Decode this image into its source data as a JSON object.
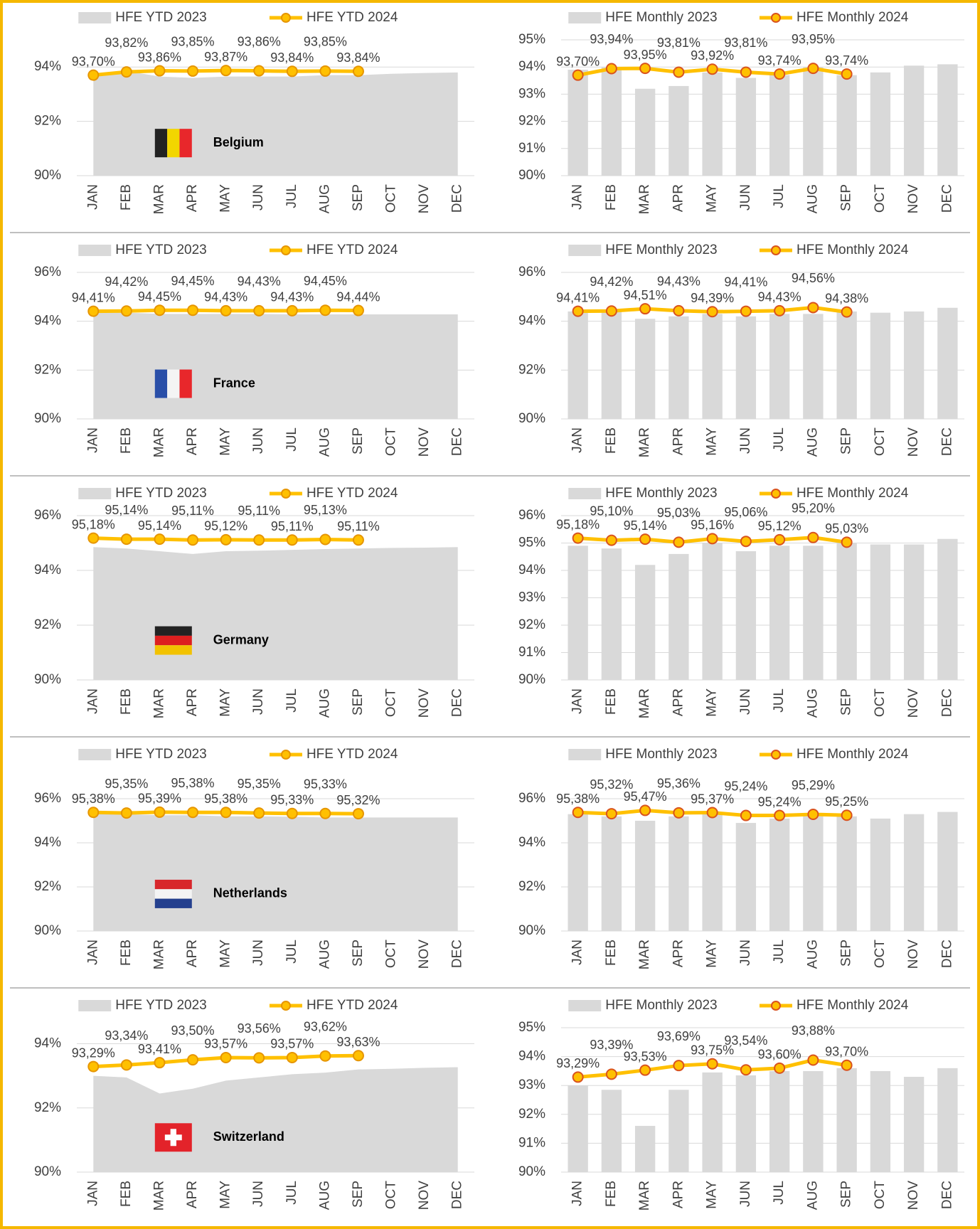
{
  "chart_data": [
    {
      "type": "combo",
      "annotation": "Belgium",
      "categories": [
        "JAN",
        "FEB",
        "MAR",
        "APR",
        "MAY",
        "JUN",
        "JUL",
        "AUG",
        "SEP",
        "OCT",
        "NOV",
        "DEC"
      ],
      "ylim": [
        90,
        95
      ],
      "yticks": [
        {
          "value": 90,
          "label": "90%"
        },
        {
          "value": 92,
          "label": "92%"
        },
        {
          "value": 94,
          "label": "94%"
        }
      ],
      "grid": true,
      "series": [
        {
          "name": "HFE YTD 2023",
          "type": "area",
          "color": "#d9d9d9",
          "values": [
            93.7,
            93.85,
            93.65,
            93.6,
            93.65,
            93.65,
            93.65,
            93.7,
            93.7,
            93.75,
            93.78,
            93.8
          ]
        },
        {
          "name": "HFE YTD 2024",
          "type": "line",
          "color": "#ffc000",
          "marker_edge": "#e69500",
          "values": [
            93.7,
            93.82,
            93.86,
            93.85,
            93.87,
            93.86,
            93.84,
            93.85,
            93.84,
            null,
            null,
            null
          ],
          "value_labels": [
            "93,70%",
            "93,82%",
            "93,86%",
            "93,85%",
            "93,87%",
            "93,86%",
            "93,84%",
            "93,85%",
            "93,84%",
            null,
            null,
            null
          ]
        }
      ]
    },
    {
      "type": "combo",
      "categories": [
        "JAN",
        "FEB",
        "MAR",
        "APR",
        "MAY",
        "JUN",
        "JUL",
        "AUG",
        "SEP",
        "OCT",
        "NOV",
        "DEC"
      ],
      "ylim": [
        90,
        95
      ],
      "yticks": [
        {
          "value": 90,
          "label": "90%"
        },
        {
          "value": 91,
          "label": "91%"
        },
        {
          "value": 92,
          "label": "92%"
        },
        {
          "value": 93,
          "label": "93%"
        },
        {
          "value": 94,
          "label": "94%"
        },
        {
          "value": 95,
          "label": "95%"
        }
      ],
      "grid": true,
      "series": [
        {
          "name": "HFE Monthly 2023",
          "type": "bar",
          "color": "#d9d9d9",
          "values": [
            93.9,
            94.0,
            93.2,
            93.3,
            93.8,
            93.6,
            93.7,
            94.0,
            93.7,
            93.8,
            94.05,
            94.1
          ]
        },
        {
          "name": "HFE Monthly 2024",
          "type": "line",
          "color": "#ffc000",
          "marker_edge": "#d9531e",
          "values": [
            93.7,
            93.94,
            93.95,
            93.81,
            93.92,
            93.81,
            93.74,
            93.95,
            93.74,
            null,
            null,
            null
          ],
          "value_labels": [
            "93,70%",
            "93,94%",
            "93,95%",
            "93,81%",
            "93,92%",
            "93,81%",
            "93,74%",
            "93,95%",
            "93,74%",
            null,
            null,
            null
          ]
        }
      ]
    },
    {
      "type": "combo",
      "annotation": "France",
      "categories": [
        "JAN",
        "FEB",
        "MAR",
        "APR",
        "MAY",
        "JUN",
        "JUL",
        "AUG",
        "SEP",
        "OCT",
        "NOV",
        "DEC"
      ],
      "ylim": [
        90,
        96
      ],
      "yticks": [
        {
          "value": 90,
          "label": "90%"
        },
        {
          "value": 92,
          "label": "92%"
        },
        {
          "value": 94,
          "label": "94%"
        },
        {
          "value": 96,
          "label": "96%"
        }
      ],
      "grid": true,
      "series": [
        {
          "name": "HFE YTD 2023",
          "type": "area",
          "color": "#d9d9d9",
          "values": [
            94.35,
            94.35,
            94.3,
            94.3,
            94.3,
            94.3,
            94.28,
            94.28,
            94.28,
            94.28,
            94.28,
            94.28
          ]
        },
        {
          "name": "HFE YTD 2024",
          "type": "line",
          "color": "#ffc000",
          "marker_edge": "#e69500",
          "values": [
            94.41,
            94.42,
            94.45,
            94.45,
            94.43,
            94.43,
            94.43,
            94.45,
            94.44,
            null,
            null,
            null
          ],
          "value_labels": [
            "94,41%",
            "94,42%",
            "94,45%",
            "94,45%",
            "94,43%",
            "94,43%",
            "94,43%",
            "94,45%",
            "94,44%",
            null,
            null,
            null
          ]
        }
      ]
    },
    {
      "type": "combo",
      "categories": [
        "JAN",
        "FEB",
        "MAR",
        "APR",
        "MAY",
        "JUN",
        "JUL",
        "AUG",
        "SEP",
        "OCT",
        "NOV",
        "DEC"
      ],
      "ylim": [
        90,
        96
      ],
      "yticks": [
        {
          "value": 90,
          "label": "90%"
        },
        {
          "value": 92,
          "label": "92%"
        },
        {
          "value": 94,
          "label": "94%"
        },
        {
          "value": 96,
          "label": "96%"
        }
      ],
      "grid": true,
      "series": [
        {
          "name": "HFE Monthly 2023",
          "type": "bar",
          "color": "#d9d9d9",
          "values": [
            94.4,
            94.4,
            94.1,
            94.2,
            94.3,
            94.2,
            94.3,
            94.3,
            94.4,
            94.35,
            94.4,
            94.55
          ]
        },
        {
          "name": "HFE Monthly 2024",
          "type": "line",
          "color": "#ffc000",
          "marker_edge": "#d9531e",
          "values": [
            94.41,
            94.42,
            94.51,
            94.43,
            94.39,
            94.41,
            94.43,
            94.56,
            94.38,
            null,
            null,
            null
          ],
          "value_labels": [
            "94,41%",
            "94,42%",
            "94,51%",
            "94,43%",
            "94,39%",
            "94,41%",
            "94,43%",
            "94,56%",
            "94,38%",
            null,
            null,
            null
          ]
        }
      ]
    },
    {
      "type": "combo",
      "annotation": "Germany",
      "categories": [
        "JAN",
        "FEB",
        "MAR",
        "APR",
        "MAY",
        "JUN",
        "JUL",
        "AUG",
        "SEP",
        "OCT",
        "NOV",
        "DEC"
      ],
      "ylim": [
        90,
        96
      ],
      "yticks": [
        {
          "value": 90,
          "label": "90%"
        },
        {
          "value": 92,
          "label": "92%"
        },
        {
          "value": 94,
          "label": "94%"
        },
        {
          "value": 96,
          "label": "96%"
        }
      ],
      "grid": true,
      "series": [
        {
          "name": "HFE YTD 2023",
          "type": "area",
          "color": "#d9d9d9",
          "values": [
            94.85,
            94.8,
            94.7,
            94.6,
            94.7,
            94.72,
            94.75,
            94.78,
            94.8,
            94.82,
            94.83,
            94.85
          ]
        },
        {
          "name": "HFE YTD 2024",
          "type": "line",
          "color": "#ffc000",
          "marker_edge": "#e69500",
          "values": [
            95.18,
            95.14,
            95.14,
            95.11,
            95.12,
            95.11,
            95.11,
            95.13,
            95.11,
            null,
            null,
            null
          ],
          "value_labels": [
            "95,18%",
            "95,14%",
            "95,14%",
            "95,11%",
            "95,12%",
            "95,11%",
            "95,11%",
            "95,13%",
            "95,11%",
            null,
            null,
            null
          ]
        }
      ]
    },
    {
      "type": "combo",
      "categories": [
        "JAN",
        "FEB",
        "MAR",
        "APR",
        "MAY",
        "JUN",
        "JUL",
        "AUG",
        "SEP",
        "OCT",
        "NOV",
        "DEC"
      ],
      "ylim": [
        90,
        96
      ],
      "yticks": [
        {
          "value": 90,
          "label": "90%"
        },
        {
          "value": 91,
          "label": "91%"
        },
        {
          "value": 92,
          "label": "92%"
        },
        {
          "value": 93,
          "label": "93%"
        },
        {
          "value": 94,
          "label": "94%"
        },
        {
          "value": 95,
          "label": "95%"
        },
        {
          "value": 96,
          "label": "96%"
        }
      ],
      "grid": true,
      "series": [
        {
          "name": "HFE Monthly 2023",
          "type": "bar",
          "color": "#d9d9d9",
          "values": [
            94.9,
            94.8,
            94.2,
            94.6,
            95.0,
            94.7,
            94.9,
            94.9,
            95.0,
            94.95,
            94.95,
            95.15
          ]
        },
        {
          "name": "HFE Monthly 2024",
          "type": "line",
          "color": "#ffc000",
          "marker_edge": "#d9531e",
          "values": [
            95.18,
            95.1,
            95.14,
            95.03,
            95.16,
            95.06,
            95.12,
            95.2,
            95.03,
            null,
            null,
            null
          ],
          "value_labels": [
            "95,18%",
            "95,10%",
            "95,14%",
            "95,03%",
            "95,16%",
            "95,06%",
            "95,12%",
            "95,20%",
            "95,03%",
            null,
            null,
            null
          ]
        }
      ]
    },
    {
      "type": "combo",
      "annotation": "Netherlands",
      "categories": [
        "JAN",
        "FEB",
        "MAR",
        "APR",
        "MAY",
        "JUN",
        "JUL",
        "AUG",
        "SEP",
        "OCT",
        "NOV",
        "DEC"
      ],
      "ylim": [
        90,
        97
      ],
      "yticks": [
        {
          "value": 90,
          "label": "90%"
        },
        {
          "value": 92,
          "label": "92%"
        },
        {
          "value": 94,
          "label": "94%"
        },
        {
          "value": 96,
          "label": "96%"
        }
      ],
      "grid": true,
      "series": [
        {
          "name": "HFE YTD 2023",
          "type": "area",
          "color": "#d9d9d9",
          "values": [
            95.3,
            95.3,
            95.25,
            95.25,
            95.2,
            95.2,
            95.18,
            95.15,
            95.15,
            95.15,
            95.15,
            95.15
          ]
        },
        {
          "name": "HFE YTD 2024",
          "type": "line",
          "color": "#ffc000",
          "marker_edge": "#e69500",
          "values": [
            95.38,
            95.35,
            95.39,
            95.38,
            95.38,
            95.35,
            95.33,
            95.33,
            95.32,
            null,
            null,
            null
          ],
          "value_labels": [
            "95,38%",
            "95,35%",
            "95,39%",
            "95,38%",
            "95,38%",
            "95,35%",
            "95,33%",
            "95,33%",
            "95,32%",
            null,
            null,
            null
          ]
        }
      ]
    },
    {
      "type": "combo",
      "categories": [
        "JAN",
        "FEB",
        "MAR",
        "APR",
        "MAY",
        "JUN",
        "JUL",
        "AUG",
        "SEP",
        "OCT",
        "NOV",
        "DEC"
      ],
      "ylim": [
        90,
        97
      ],
      "yticks": [
        {
          "value": 90,
          "label": "90%"
        },
        {
          "value": 92,
          "label": "92%"
        },
        {
          "value": 94,
          "label": "94%"
        },
        {
          "value": 96,
          "label": "96%"
        }
      ],
      "grid": true,
      "series": [
        {
          "name": "HFE Monthly 2023",
          "type": "bar",
          "color": "#d9d9d9",
          "values": [
            95.3,
            95.2,
            95.0,
            95.2,
            95.3,
            94.9,
            95.1,
            95.2,
            95.2,
            95.1,
            95.3,
            95.4
          ]
        },
        {
          "name": "HFE Monthly 2024",
          "type": "line",
          "color": "#ffc000",
          "marker_edge": "#d9531e",
          "values": [
            95.38,
            95.32,
            95.47,
            95.36,
            95.37,
            95.24,
            95.24,
            95.29,
            95.25,
            null,
            null,
            null
          ],
          "value_labels": [
            "95,38%",
            "95,32%",
            "95,47%",
            "95,36%",
            "95,37%",
            "95,24%",
            "95,24%",
            "95,29%",
            "95,25%",
            null,
            null,
            null
          ]
        }
      ]
    },
    {
      "type": "combo",
      "annotation": "Switzerland",
      "categories": [
        "JAN",
        "FEB",
        "MAR",
        "APR",
        "MAY",
        "JUN",
        "JUL",
        "AUG",
        "SEP",
        "OCT",
        "NOV",
        "DEC"
      ],
      "ylim": [
        90,
        94.5
      ],
      "yticks": [
        {
          "value": 90,
          "label": "90%"
        },
        {
          "value": 92,
          "label": "92%"
        },
        {
          "value": 94,
          "label": "94%"
        }
      ],
      "grid": true,
      "series": [
        {
          "name": "HFE YTD 2023",
          "type": "area",
          "color": "#d9d9d9",
          "values": [
            93.0,
            92.95,
            92.45,
            92.6,
            92.85,
            92.95,
            93.05,
            93.1,
            93.2,
            93.22,
            93.25,
            93.27
          ]
        },
        {
          "name": "HFE YTD 2024",
          "type": "line",
          "color": "#ffc000",
          "marker_edge": "#e69500",
          "values": [
            93.29,
            93.34,
            93.41,
            93.5,
            93.57,
            93.56,
            93.57,
            93.62,
            93.63,
            null,
            null,
            null
          ],
          "value_labels": [
            "93,29%",
            "93,34%",
            "93,41%",
            "93,50%",
            "93,57%",
            "93,56%",
            "93,57%",
            "93,62%",
            "93,63%",
            null,
            null,
            null
          ]
        }
      ]
    },
    {
      "type": "combo",
      "categories": [
        "JAN",
        "FEB",
        "MAR",
        "APR",
        "MAY",
        "JUN",
        "JUL",
        "AUG",
        "SEP",
        "OCT",
        "NOV",
        "DEC"
      ],
      "ylim": [
        90,
        95
      ],
      "yticks": [
        {
          "value": 90,
          "label": "90%"
        },
        {
          "value": 91,
          "label": "91%"
        },
        {
          "value": 92,
          "label": "92%"
        },
        {
          "value": 93,
          "label": "93%"
        },
        {
          "value": 94,
          "label": "94%"
        },
        {
          "value": 95,
          "label": "95%"
        }
      ],
      "grid": true,
      "series": [
        {
          "name": "HFE Monthly 2023",
          "type": "bar",
          "color": "#d9d9d9",
          "values": [
            93.0,
            92.85,
            91.6,
            92.85,
            93.45,
            93.35,
            93.5,
            93.5,
            93.6,
            93.5,
            93.3,
            93.6
          ]
        },
        {
          "name": "HFE Monthly 2024",
          "type": "line",
          "color": "#ffc000",
          "marker_edge": "#d9531e",
          "values": [
            93.29,
            93.39,
            93.53,
            93.69,
            93.75,
            93.54,
            93.6,
            93.88,
            93.7,
            null,
            null,
            null
          ],
          "value_labels": [
            "93,29%",
            "93,39%",
            "93,53%",
            "93,69%",
            "93,75%",
            "93,54%",
            "93,60%",
            "93,88%",
            "93,70%",
            null,
            null,
            null
          ]
        }
      ]
    }
  ]
}
